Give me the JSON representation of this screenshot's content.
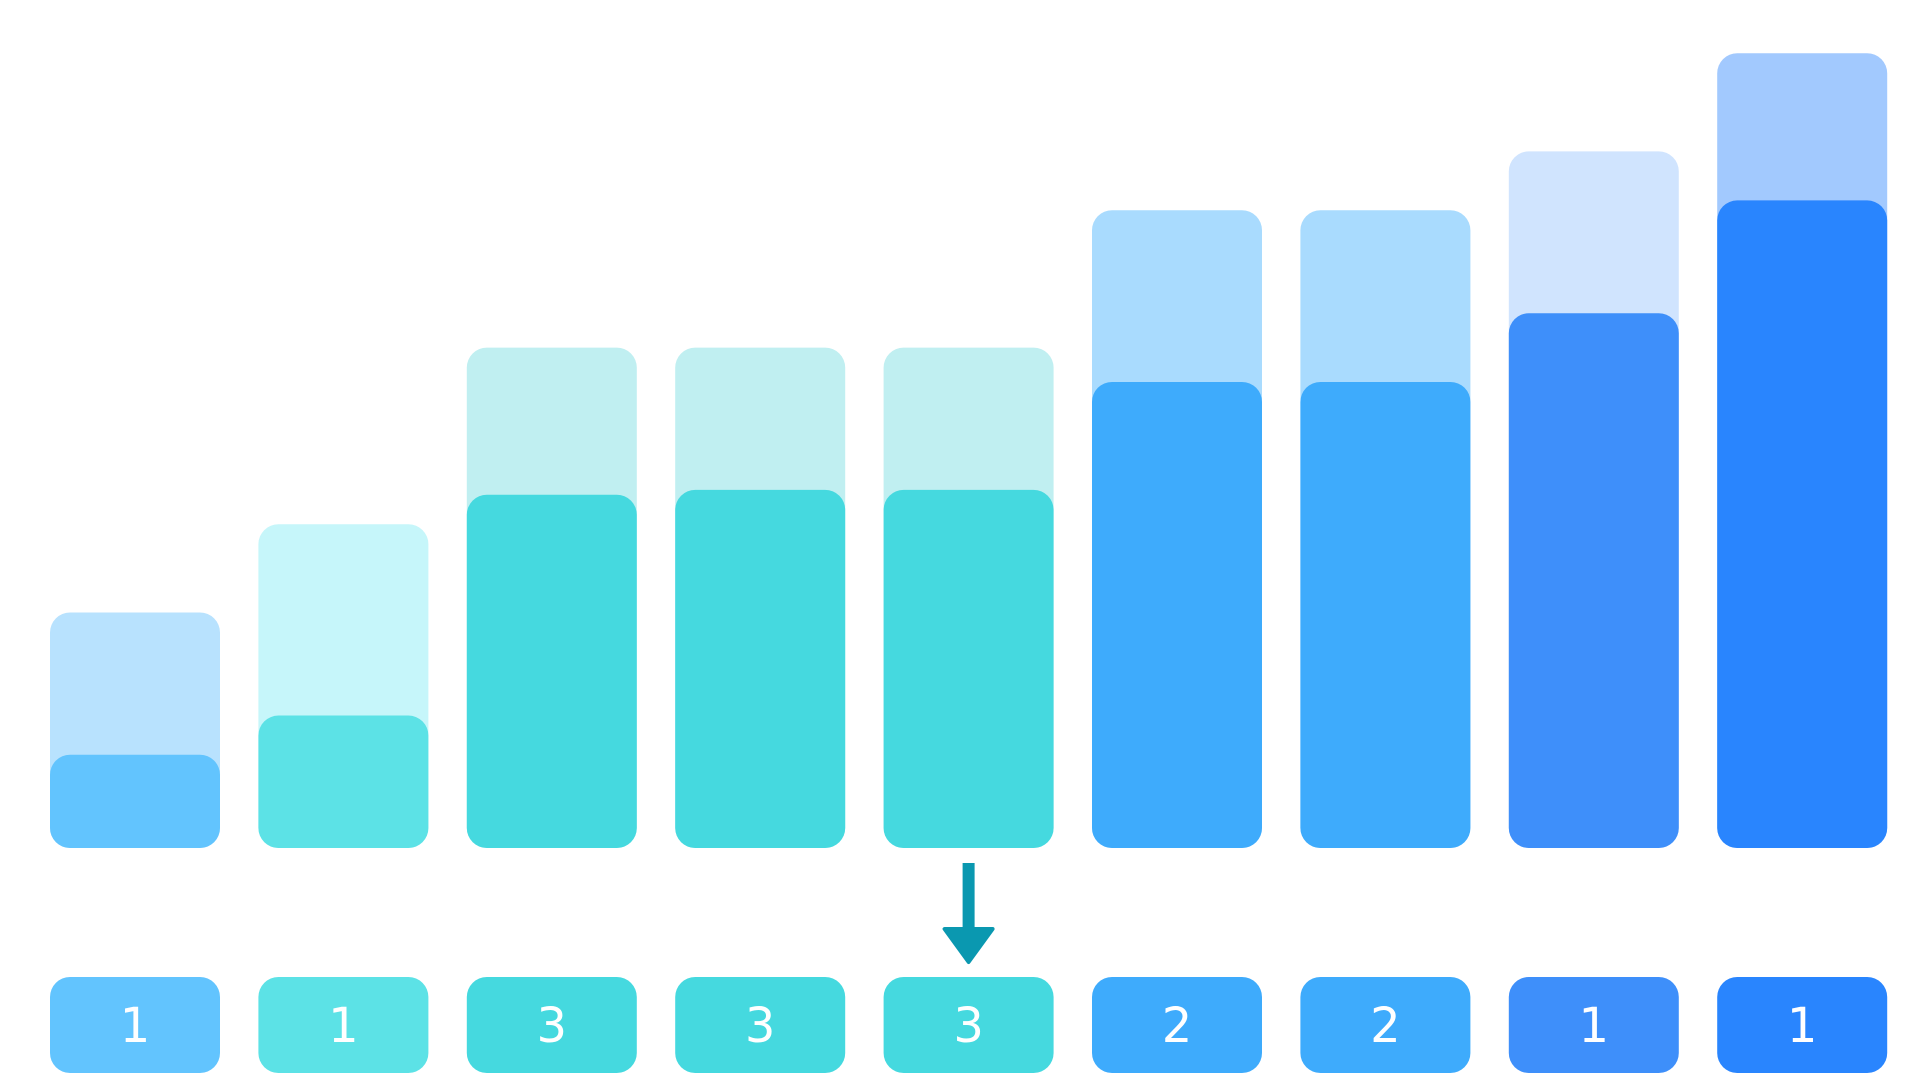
{
  "chart_data": {
    "type": "bar",
    "categories": [
      "1",
      "1",
      "3",
      "3",
      "3",
      "2",
      "2",
      "1",
      "1"
    ],
    "series": [
      {
        "role": "outer",
        "values": [
          24,
          33,
          51,
          51,
          51,
          65,
          65,
          71,
          81
        ]
      },
      {
        "role": "inner",
        "values": [
          9.5,
          13.5,
          36,
          36.5,
          36.5,
          47.5,
          47.5,
          54.5,
          66
        ]
      }
    ],
    "highlight_index": 4,
    "ylim": [
      0,
      85
    ],
    "grid": false,
    "legend": "none",
    "colors": {
      "outer": [
        "#b8e2fe",
        "#c6f6fa",
        "#c0eff1",
        "#c0eff1",
        "#c0eff1",
        "#a9dbfe",
        "#a9dbfe",
        "#d0e4fe",
        "#a2c9fe"
      ],
      "inner": [
        "#62c4fe",
        "#5ce2e6",
        "#45d9df",
        "#45d9df",
        "#45d9df",
        "#3eabfc",
        "#3eabfc",
        "#3e8ffa",
        "#2985fe"
      ],
      "label": [
        "#62c4fe",
        "#5ce2e6",
        "#45d9df",
        "#45d9df",
        "#45d9df",
        "#3eabfc",
        "#3eabfc",
        "#3e8ffa",
        "#2985fe"
      ],
      "arrow": "#0a98b0",
      "label_text": "#ffffff"
    }
  }
}
